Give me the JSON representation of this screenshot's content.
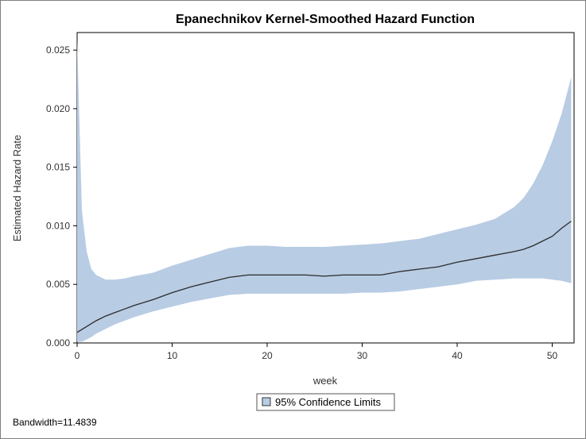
{
  "chart_data": {
    "type": "line",
    "title": "Epanechnikov Kernel-Smoothed Hazard Function",
    "xlabel": "week",
    "ylabel": "Estimated Hazard Rate",
    "xlim": [
      0,
      52.3
    ],
    "ylim": [
      0,
      0.0265
    ],
    "x_ticks": [
      0,
      10,
      20,
      30,
      40,
      50
    ],
    "y_ticks": [
      0.0,
      0.005,
      0.01,
      0.015,
      0.02,
      0.025
    ],
    "y_tick_labels": [
      "0.000",
      "0.005",
      "0.010",
      "0.015",
      "0.020",
      "0.025"
    ],
    "grid": false,
    "legend_position": "bottom-center",
    "legend": [
      {
        "label": "95% Confidence Limits",
        "color": "#b8cce4"
      }
    ],
    "series": [
      {
        "kind": "line",
        "color": "#2b2b2b",
        "x": [
          0,
          1,
          2,
          3,
          4,
          5,
          6,
          8,
          10,
          12,
          14,
          16,
          18,
          20,
          22,
          24,
          26,
          28,
          30,
          32,
          34,
          36,
          38,
          40,
          42,
          44,
          46,
          47,
          48,
          50,
          51,
          52
        ],
        "y": [
          0.0009,
          0.0014,
          0.0019,
          0.0023,
          0.0026,
          0.0029,
          0.0032,
          0.0037,
          0.0043,
          0.0048,
          0.0052,
          0.0056,
          0.0058,
          0.0058,
          0.0058,
          0.0058,
          0.0057,
          0.0058,
          0.0058,
          0.0058,
          0.0061,
          0.0063,
          0.0065,
          0.0069,
          0.0072,
          0.0075,
          0.0078,
          0.008,
          0.0083,
          0.0091,
          0.0098,
          0.0104
        ]
      },
      {
        "kind": "band",
        "name": "95% Confidence Limits",
        "color": "#b8cce4",
        "x": [
          0,
          0.5,
          1,
          1.5,
          2,
          3,
          4,
          5,
          6,
          8,
          10,
          12,
          14,
          16,
          18,
          20,
          22,
          24,
          26,
          28,
          30,
          32,
          34,
          36,
          38,
          40,
          42,
          44,
          46,
          47,
          48,
          49,
          50,
          51,
          52
        ],
        "lower": [
          0.0001,
          0.0001,
          0.0003,
          0.0005,
          0.0008,
          0.0012,
          0.0016,
          0.0019,
          0.0022,
          0.0027,
          0.0031,
          0.0035,
          0.0038,
          0.0041,
          0.0042,
          0.0042,
          0.0042,
          0.0042,
          0.0042,
          0.0042,
          0.0043,
          0.0043,
          0.0044,
          0.0046,
          0.0048,
          0.005,
          0.0053,
          0.0054,
          0.0055,
          0.0055,
          0.0055,
          0.0055,
          0.0054,
          0.0053,
          0.0051
        ],
        "upper": [
          0.0259,
          0.0113,
          0.0078,
          0.0063,
          0.0058,
          0.0054,
          0.0054,
          0.0055,
          0.0057,
          0.006,
          0.0066,
          0.0071,
          0.0076,
          0.0081,
          0.0083,
          0.0083,
          0.0082,
          0.0082,
          0.0082,
          0.0083,
          0.0084,
          0.0085,
          0.0087,
          0.0089,
          0.0093,
          0.0097,
          0.0101,
          0.0106,
          0.0116,
          0.0124,
          0.0136,
          0.0152,
          0.0172,
          0.0196,
          0.0227
        ]
      }
    ],
    "footnote": "Bandwidth=11.4839"
  }
}
